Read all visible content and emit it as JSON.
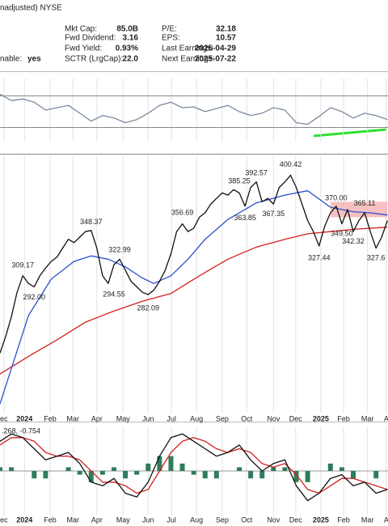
{
  "header": {
    "exchange": "nadjusted) NYSE",
    "optionable": {
      "label": "nable:",
      "value": "yes"
    },
    "left": [
      {
        "label": "Mkt Cap:",
        "value": "85.0B"
      },
      {
        "label": "Fwd Dividend:",
        "value": "3.16"
      },
      {
        "label": "Fwd Yield:",
        "value": "0.93%"
      },
      {
        "label": "SCTR (LrgCap):",
        "value": "22.0"
      }
    ],
    "right": [
      {
        "label": "P/E:",
        "value": "32.18"
      },
      {
        "label": "EPS:",
        "value": "10.57"
      },
      {
        "label": "Last Earnings:",
        "value": "2025-04-29"
      },
      {
        "label": "Next Earnings:",
        "value": "2025-07-22"
      }
    ]
  },
  "chart_data": [
    {
      "type": "line",
      "xlim": [
        0,
        68.1
      ],
      "ylim": [
        12,
        92
      ],
      "reference_lines": [
        30,
        70
      ],
      "series": [
        {
          "color": "#7a8aa0",
          "x": [
            0,
            2,
            4,
            6,
            8,
            10,
            12,
            14,
            16,
            18,
            20,
            22,
            24,
            26,
            28,
            30,
            32,
            34,
            36,
            38,
            40,
            42,
            44,
            46,
            48,
            50,
            52,
            54,
            56,
            58,
            60,
            62,
            64,
            66,
            68
          ],
          "values": [
            72,
            64,
            66,
            62,
            52,
            55,
            58,
            48,
            38,
            45,
            42,
            36,
            40,
            48,
            58,
            62,
            55,
            56,
            50,
            54,
            58,
            50,
            45,
            48,
            55,
            52,
            36,
            34,
            44,
            55,
            50,
            42,
            48,
            45,
            40
          ]
        }
      ]
    },
    {
      "type": "line",
      "xlim": [
        0,
        68.1
      ],
      "ylim": [
        181,
        414
      ],
      "xticks": [
        {
          "value": 0.7,
          "label": "ec"
        },
        {
          "value": 4.3,
          "label": "2024"
        },
        {
          "value": 8.8,
          "label": "Feb"
        },
        {
          "value": 12.8,
          "label": "Mar"
        },
        {
          "value": 17,
          "label": "Apr"
        },
        {
          "value": 21.6,
          "label": "May"
        },
        {
          "value": 26,
          "label": "Jun"
        },
        {
          "value": 30.1,
          "label": "Jul"
        },
        {
          "value": 34.5,
          "label": "Aug"
        },
        {
          "value": 39,
          "label": "Sep"
        },
        {
          "value": 43.3,
          "label": "Oct"
        },
        {
          "value": 48,
          "label": "Nov"
        },
        {
          "value": 51.9,
          "label": "Dec"
        },
        {
          "value": 56.3,
          "label": "2025"
        },
        {
          "value": 60.3,
          "label": "Feb"
        },
        {
          "value": 64.5,
          "label": "Mar"
        },
        {
          "value": 67.8,
          "label": "A"
        }
      ],
      "band": {
        "x": [
          58,
          68
        ],
        "values": [
          358,
          372
        ],
        "color": "#f4a6a6"
      },
      "series": [
        {
          "color": "#d42020",
          "x": [
            0,
            5,
            10,
            15,
            20,
            25,
            30,
            35,
            40,
            45,
            50,
            54,
            58,
            62,
            68
          ],
          "values": [
            216,
            232,
            247,
            263,
            273,
            282,
            289,
            305,
            320,
            331,
            338,
            343,
            345,
            347,
            349
          ]
        },
        {
          "color": "#2a4fd0",
          "x": [
            0,
            5,
            9,
            13,
            16,
            19,
            22,
            25,
            27,
            30,
            33,
            36,
            40,
            45,
            50,
            54,
            58,
            62,
            65,
            68
          ],
          "values": [
            189,
            269,
            302,
            318,
            323,
            320,
            313,
            303,
            298,
            305,
            320,
            338,
            356,
            371,
            378,
            382,
            367,
            363,
            362,
            360
          ]
        },
        {
          "color": "#111",
          "x": [
            0,
            1,
            2,
            3,
            4,
            5,
            6,
            7,
            8,
            9,
            10,
            11,
            12,
            13,
            14,
            15,
            16,
            17,
            18,
            19,
            20,
            21,
            22,
            23,
            24,
            25,
            26,
            27,
            28,
            29,
            30,
            31,
            32,
            33,
            34,
            35,
            36,
            37,
            38,
            39,
            40,
            41,
            42,
            43,
            44,
            45,
            46,
            47,
            48,
            49,
            50,
            51,
            52,
            53,
            54,
            55,
            56,
            57,
            58,
            59,
            60,
            61,
            62,
            63,
            64,
            65,
            66,
            67,
            68
          ],
          "values": [
            235,
            250,
            268,
            290,
            305,
            298,
            295,
            305,
            312,
            318,
            322,
            330,
            338,
            335,
            340,
            345,
            346,
            330,
            305,
            298,
            315,
            320,
            310,
            300,
            295,
            290,
            288,
            292,
            300,
            310,
            325,
            345,
            352,
            345,
            348,
            358,
            362,
            370,
            375,
            380,
            378,
            383,
            380,
            368,
            385,
            390,
            372,
            375,
            370,
            385,
            390,
            396,
            385,
            370,
            355,
            345,
            332,
            350,
            362,
            368,
            352,
            365,
            345,
            355,
            362,
            345,
            330,
            340,
            355
          ]
        }
      ],
      "annotations": [
        {
          "x": 4,
          "value": 309.17,
          "position": "above"
        },
        {
          "x": 6,
          "value": 292,
          "label": "292.00",
          "position": "below"
        },
        {
          "x": 16,
          "value": 348.37,
          "position": "above"
        },
        {
          "x": 21,
          "value": 322.99,
          "position": "above"
        },
        {
          "x": 20,
          "value": 294.55,
          "position": "below"
        },
        {
          "x": 26,
          "value": 282.09,
          "position": "below"
        },
        {
          "x": 32,
          "value": 356.69,
          "position": "above"
        },
        {
          "x": 42,
          "value": 385.25,
          "position": "above"
        },
        {
          "x": 43,
          "value": 363.85,
          "position": "below"
        },
        {
          "x": 45,
          "value": 392.57,
          "position": "above"
        },
        {
          "x": 48,
          "value": 367.35,
          "position": "below"
        },
        {
          "x": 51,
          "value": 400.42,
          "position": "above"
        },
        {
          "x": 56,
          "value": 327.44,
          "position": "below"
        },
        {
          "x": 59,
          "value": 370,
          "label": "370.00",
          "position": "above"
        },
        {
          "x": 60,
          "value": 349.5,
          "label": "349.50",
          "position": "below"
        },
        {
          "x": 62,
          "value": 342.32,
          "position": "below"
        },
        {
          "x": 64,
          "value": 365.11,
          "position": "above"
        },
        {
          "x": 66,
          "value": 327.6,
          "position": "below"
        }
      ]
    },
    {
      "type": "line",
      "xlim": [
        0,
        68.1
      ],
      "ylim": [
        -12,
        12
      ],
      "legend_values": ".268, -0.754",
      "xticks": [
        {
          "value": 0.7,
          "label": "ec"
        },
        {
          "value": 4.3,
          "label": "2024"
        },
        {
          "value": 8.8,
          "label": "Feb"
        },
        {
          "value": 12.8,
          "label": "Mar"
        },
        {
          "value": 17,
          "label": "Apr"
        },
        {
          "value": 21.6,
          "label": "May"
        },
        {
          "value": 26,
          "label": "Jun"
        },
        {
          "value": 30.1,
          "label": "Jul"
        },
        {
          "value": 34.5,
          "label": "Aug"
        },
        {
          "value": 39,
          "label": "Sep"
        },
        {
          "value": 43.3,
          "label": "Oct"
        },
        {
          "value": 48,
          "label": "Nov"
        },
        {
          "value": 51.9,
          "label": "Dec"
        },
        {
          "value": 56.3,
          "label": "2025"
        },
        {
          "value": 60.3,
          "label": "Feb"
        },
        {
          "value": 64.5,
          "label": "Mar"
        },
        {
          "value": 67.8,
          "label": "A"
        }
      ],
      "series": [
        {
          "kind": "bar",
          "color": "#2e7d5b",
          "x": [
            0,
            2,
            4,
            6,
            8,
            10,
            12,
            14,
            16,
            18,
            20,
            22,
            24,
            26,
            28,
            30,
            32,
            34,
            36,
            38,
            40,
            42,
            44,
            46,
            48,
            50,
            52,
            54,
            56,
            58,
            60,
            62,
            64,
            66,
            68
          ],
          "values": [
            1,
            1,
            0,
            -2,
            -2,
            0,
            1,
            -1,
            -3,
            -1,
            1,
            -2,
            -1,
            2,
            4,
            4,
            2,
            -1,
            -2,
            -2,
            0,
            1,
            -2,
            -2,
            1,
            1,
            -3,
            -3,
            0,
            2,
            1,
            -2,
            0,
            -2,
            0
          ]
        },
        {
          "color": "#d42020",
          "x": [
            0,
            2,
            4,
            6,
            8,
            10,
            12,
            14,
            16,
            18,
            20,
            22,
            24,
            26,
            28,
            30,
            32,
            34,
            36,
            38,
            40,
            42,
            44,
            46,
            48,
            50,
            52,
            54,
            56,
            58,
            60,
            62,
            64,
            66,
            68
          ],
          "values": [
            7,
            9,
            9,
            8,
            5,
            4,
            4,
            3,
            0,
            -3,
            -3,
            -4,
            -6,
            -5,
            0,
            5,
            8,
            9,
            8,
            6,
            5,
            6,
            5,
            2,
            1,
            2,
            -1,
            -5,
            -6,
            -4,
            -2,
            -2,
            -3,
            -4,
            -5
          ]
        },
        {
          "color": "#111",
          "x": [
            0,
            2,
            4,
            6,
            8,
            10,
            12,
            14,
            16,
            18,
            20,
            22,
            24,
            26,
            28,
            30,
            32,
            34,
            36,
            38,
            40,
            42,
            44,
            46,
            48,
            50,
            52,
            54,
            56,
            58,
            60,
            62,
            64,
            66,
            68
          ],
          "values": [
            8,
            10,
            9,
            6,
            3,
            4,
            5,
            2,
            -3,
            -4,
            -2,
            -6,
            -7,
            -3,
            4,
            9,
            10,
            8,
            6,
            4,
            5,
            7,
            3,
            0,
            2,
            3,
            -4,
            -8,
            -6,
            -2,
            -1,
            -4,
            -3,
            -6,
            -5
          ]
        }
      ]
    }
  ]
}
